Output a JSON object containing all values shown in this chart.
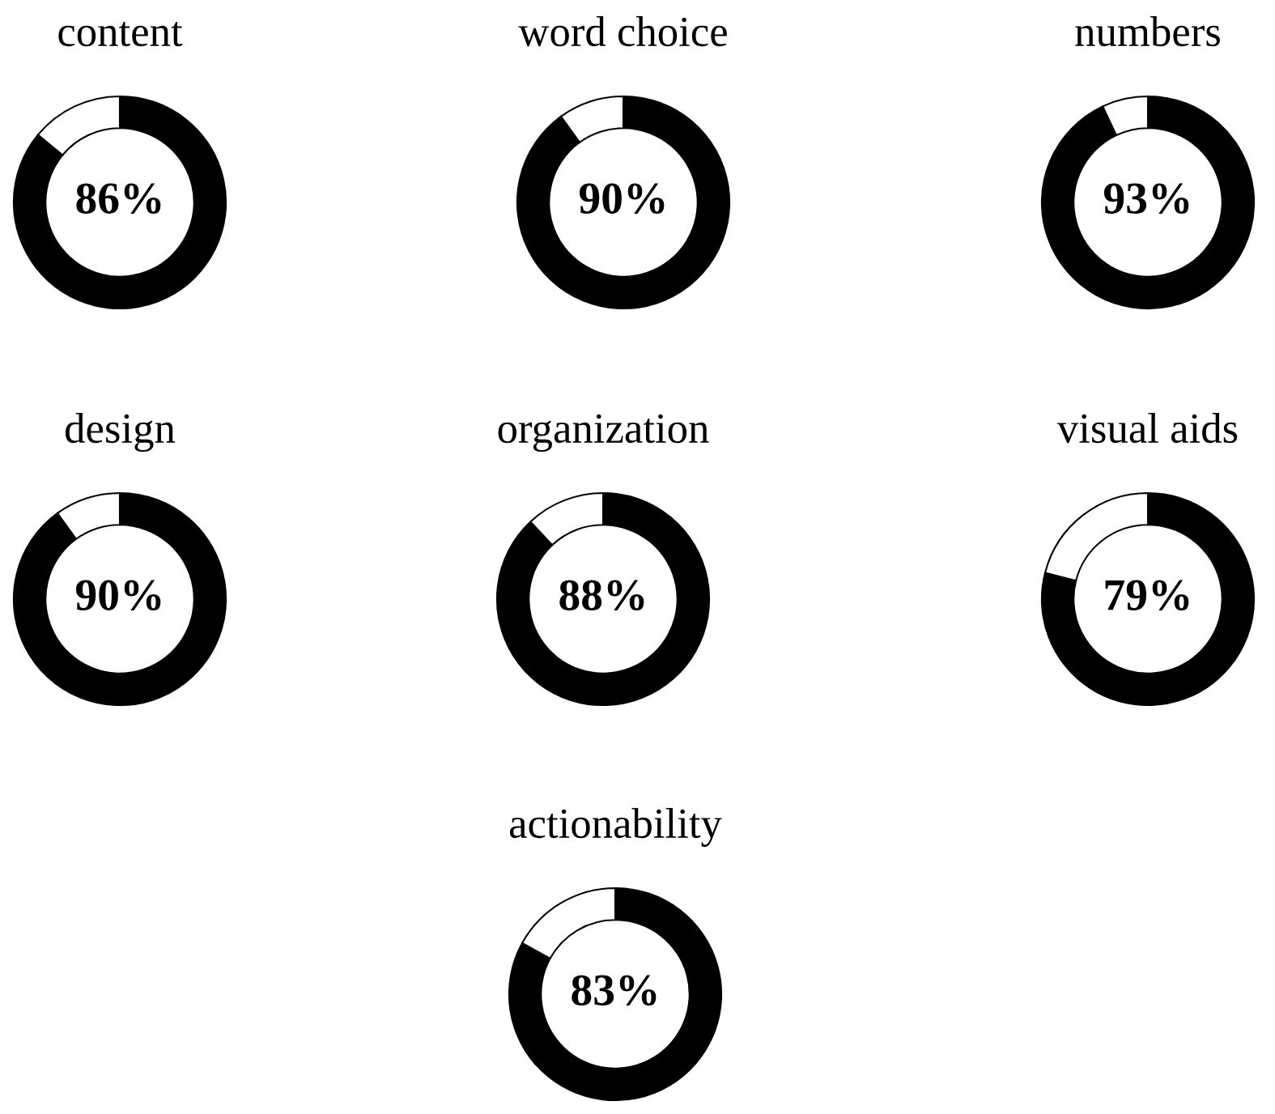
{
  "chart_data": [
    {
      "type": "donut",
      "title": "content",
      "categories": [
        null,
        null
      ],
      "values": [
        86,
        14
      ],
      "colors": [
        "#000000",
        "#ffffff"
      ],
      "annotations": [
        "86%"
      ]
    },
    {
      "type": "donut",
      "title": "word choice",
      "categories": [
        null,
        null
      ],
      "values": [
        90,
        10
      ],
      "colors": [
        "#000000",
        "#ffffff"
      ],
      "annotations": [
        "90%"
      ]
    },
    {
      "type": "donut",
      "title": "numbers",
      "categories": [
        null,
        null
      ],
      "values": [
        93,
        7
      ],
      "colors": [
        "#000000",
        "#ffffff"
      ],
      "annotations": [
        "93%"
      ]
    },
    {
      "type": "donut",
      "title": "design",
      "categories": [
        null,
        null
      ],
      "values": [
        90,
        10
      ],
      "colors": [
        "#000000",
        "#ffffff"
      ],
      "annotations": [
        "90%"
      ]
    },
    {
      "type": "donut",
      "title": "organization",
      "categories": [
        null,
        null
      ],
      "values": [
        88,
        12
      ],
      "colors": [
        "#000000",
        "#ffffff"
      ],
      "annotations": [
        "88%"
      ]
    },
    {
      "type": "donut",
      "title": "visual aids",
      "categories": [
        null,
        null
      ],
      "values": [
        79,
        21
      ],
      "colors": [
        "#000000",
        "#ffffff"
      ],
      "annotations": [
        "79%"
      ]
    },
    {
      "type": "donut",
      "title": "actionability",
      "categories": [
        null,
        null
      ],
      "values": [
        83,
        17
      ],
      "colors": [
        "#000000",
        "#ffffff"
      ],
      "annotations": [
        "83%"
      ]
    }
  ]
}
